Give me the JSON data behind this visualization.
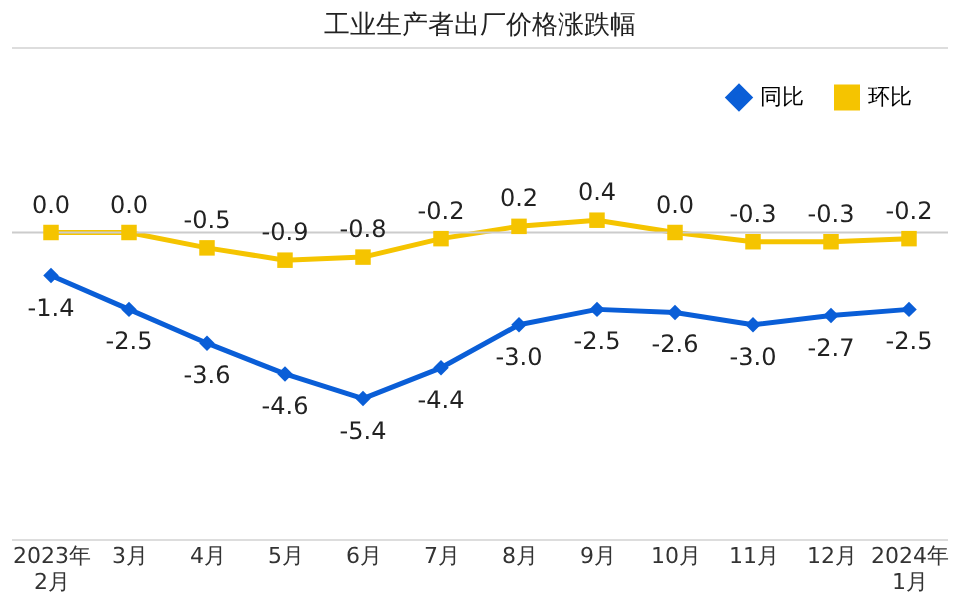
{
  "chart_data": {
    "type": "line",
    "title": "工业生产者出厂价格涨跌幅",
    "categories": [
      "2023年\n2月",
      "3月",
      "4月",
      "5月",
      "6月",
      "7月",
      "8月",
      "9月",
      "10月",
      "11月",
      "12月",
      "2024年\n1月"
    ],
    "series": [
      {
        "name": "同比",
        "color": "#0a5ed7",
        "marker": "diamond",
        "values": [
          -1.4,
          -2.5,
          -3.6,
          -4.6,
          -5.4,
          -4.4,
          -3.0,
          -2.5,
          -2.6,
          -3.0,
          -2.7,
          -2.5
        ],
        "value_labels": [
          "-1.4",
          "-2.5",
          "-3.6",
          "-4.6",
          "-5.4",
          "-4.4",
          "-3.0",
          "-2.5",
          "-2.6",
          "-3.0",
          "-2.7",
          "-2.5"
        ]
      },
      {
        "name": "环比",
        "color": "#f5c400",
        "marker": "square",
        "values": [
          0.0,
          0.0,
          -0.5,
          -0.9,
          -0.8,
          -0.2,
          0.2,
          0.4,
          0.0,
          -0.3,
          -0.3,
          -0.2
        ],
        "value_labels": [
          "0.0",
          "0.0",
          "-0.5",
          "-0.9",
          "-0.8",
          "-0.2",
          "0.2",
          "0.4",
          "0.0",
          "-0.3",
          "-0.3",
          "-0.2"
        ]
      }
    ],
    "ylim": [
      -10,
      6
    ],
    "ref_lines": [
      {
        "axis": "y",
        "value": 0
      }
    ],
    "legend": "top right",
    "grid": false,
    "line_style": "solid"
  }
}
